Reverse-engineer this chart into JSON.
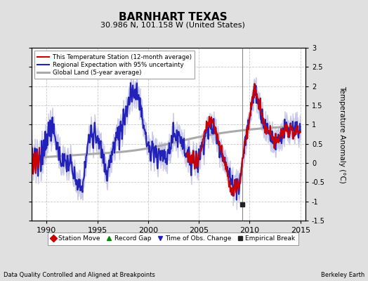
{
  "title": "BARNHART TEXAS",
  "subtitle": "30.986 N, 101.158 W (United States)",
  "ylabel": "Temperature Anomaly (°C)",
  "xlabel_left": "Data Quality Controlled and Aligned at Breakpoints",
  "xlabel_right": "Berkeley Earth",
  "ylim": [
    -1.5,
    3.0
  ],
  "xlim": [
    1988.5,
    2015.5
  ],
  "yticks": [
    -1.5,
    -1.0,
    -0.5,
    0.0,
    0.5,
    1.0,
    1.5,
    2.0,
    2.5,
    3.0
  ],
  "xticks": [
    1990,
    1995,
    2000,
    2005,
    2010,
    2015
  ],
  "bg_color": "#e0e0e0",
  "plot_bg_color": "#ffffff",
  "grid_color": "#c8c8c8",
  "empirical_break_x": 2009.3,
  "empirical_break_y": -1.08,
  "vline_x": 2009.3,
  "red_color": "#cc0000",
  "blue_color": "#2222bb",
  "blue_fill_color": "#aaaadd",
  "gray_color": "#aaaaaa",
  "legend1_entries": [
    {
      "label": "This Temperature Station (12-month average)",
      "color": "#cc0000",
      "lw": 1.5
    },
    {
      "label": "Regional Expectation with 95% uncertainty",
      "color": "#2222bb",
      "lw": 1.5
    },
    {
      "label": "Global Land (5-year average)",
      "color": "#aaaaaa",
      "lw": 2.2
    }
  ],
  "legend2_entries": [
    {
      "label": "Station Move",
      "marker": "D",
      "color": "#cc0000"
    },
    {
      "label": "Record Gap",
      "marker": "^",
      "color": "#008800"
    },
    {
      "label": "Time of Obs. Change",
      "marker": "v",
      "color": "#2222bb"
    },
    {
      "label": "Empirical Break",
      "marker": "s",
      "color": "#222222"
    }
  ]
}
